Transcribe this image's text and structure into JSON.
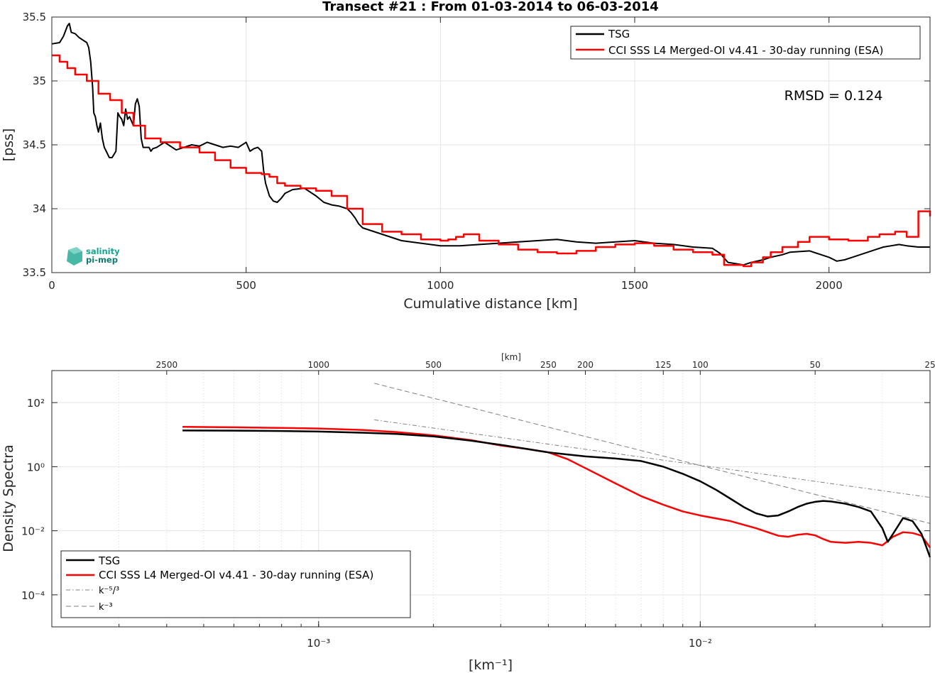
{
  "colors": {
    "tsg": "#000000",
    "cci": "#ff0000",
    "power_law": "#7f7f7f",
    "grid": "#e5e5e5",
    "logo": "#1aa390"
  },
  "logo": {
    "line1": "salinity",
    "line2": "pi-mep"
  },
  "chart_data": [
    {
      "type": "line",
      "title": "Transect #21 : From 01-03-2014 to 06-03-2014",
      "xlabel": "Cumulative distance [km]",
      "ylabel": "[pss]",
      "xlim": [
        0,
        2260
      ],
      "ylim": [
        33.5,
        35.5
      ],
      "xticks": [
        0,
        500,
        1000,
        1500,
        2000
      ],
      "yticks": [
        33.5,
        34,
        34.5,
        35,
        35.5
      ],
      "xtick_labels": [
        "0",
        "500",
        "1000",
        "1500",
        "2000"
      ],
      "ytick_labels": [
        "33.5",
        "34",
        "34.5",
        "35",
        "35.5"
      ],
      "grid": true,
      "legend_position": "top-right",
      "annotation": "RMSD = 0.124",
      "series": [
        {
          "name": "TSG",
          "style": "line",
          "x": [
            0,
            20,
            30,
            40,
            45,
            50,
            60,
            70,
            80,
            90,
            95,
            100,
            105,
            108,
            112,
            116,
            120,
            125,
            130,
            135,
            140,
            148,
            155,
            165,
            170,
            175,
            180,
            185,
            190,
            195,
            200,
            210,
            215,
            220,
            225,
            230,
            235,
            240,
            245,
            250,
            255,
            260,
            270,
            290,
            300,
            320,
            340,
            360,
            380,
            400,
            420,
            440,
            460,
            480,
            500,
            510,
            520,
            530,
            540,
            545,
            550,
            555,
            560,
            570,
            580,
            590,
            600,
            620,
            650,
            680,
            700,
            720,
            740,
            760,
            770,
            780,
            790,
            800,
            850,
            900,
            950,
            1000,
            1050,
            1100,
            1150,
            1200,
            1250,
            1300,
            1350,
            1400,
            1450,
            1500,
            1550,
            1600,
            1650,
            1700,
            1720,
            1740,
            1760,
            1780,
            1800,
            1830,
            1850,
            1880,
            1900,
            1950,
            2000,
            2020,
            2040,
            2060,
            2080,
            2100,
            2120,
            2140,
            2160,
            2180,
            2200,
            2230,
            2260
          ],
          "y": [
            35.29,
            35.3,
            35.35,
            35.43,
            35.45,
            35.38,
            35.37,
            35.34,
            35.32,
            35.3,
            35.26,
            35.15,
            34.95,
            34.75,
            34.72,
            34.65,
            34.6,
            34.67,
            34.55,
            34.48,
            34.45,
            34.4,
            34.4,
            34.45,
            34.75,
            34.72,
            34.7,
            34.65,
            34.78,
            34.7,
            34.72,
            34.65,
            34.82,
            34.86,
            34.8,
            34.55,
            34.48,
            34.48,
            34.48,
            34.48,
            34.45,
            34.47,
            34.48,
            34.52,
            34.5,
            34.46,
            34.48,
            34.5,
            34.49,
            34.52,
            34.5,
            34.48,
            34.49,
            34.48,
            34.52,
            34.45,
            34.47,
            34.48,
            34.45,
            34.3,
            34.2,
            34.15,
            34.1,
            34.06,
            34.05,
            34.08,
            34.12,
            34.15,
            34.16,
            34.1,
            34.05,
            34.03,
            34.02,
            34.0,
            33.97,
            33.93,
            33.88,
            33.85,
            33.8,
            33.75,
            33.73,
            33.71,
            33.71,
            33.72,
            33.73,
            33.74,
            33.75,
            33.76,
            33.74,
            33.73,
            33.74,
            33.75,
            33.73,
            33.72,
            33.7,
            33.69,
            33.65,
            33.58,
            33.57,
            33.56,
            33.58,
            33.6,
            33.62,
            33.64,
            33.66,
            33.67,
            33.62,
            33.59,
            33.6,
            33.62,
            33.64,
            33.66,
            33.68,
            33.7,
            33.71,
            33.72,
            33.71,
            33.7,
            33.7
          ]
        },
        {
          "name": "CCI SSS L4 Merged-OI v4.41 - 30-day running (ESA)",
          "style": "step",
          "x": [
            0,
            20,
            40,
            60,
            90,
            120,
            150,
            180,
            210,
            240,
            280,
            330,
            380,
            420,
            460,
            500,
            540,
            560,
            580,
            600,
            640,
            680,
            720,
            760,
            800,
            850,
            900,
            950,
            1000,
            1020,
            1040,
            1060,
            1100,
            1150,
            1200,
            1250,
            1300,
            1350,
            1400,
            1450,
            1500,
            1550,
            1600,
            1650,
            1700,
            1730,
            1780,
            1800,
            1830,
            1850,
            1880,
            1920,
            1950,
            2000,
            2050,
            2100,
            2130,
            2170,
            2200,
            2230,
            2260
          ],
          "y": [
            35.2,
            35.15,
            35.1,
            35.05,
            35.0,
            34.9,
            34.85,
            34.75,
            34.65,
            34.55,
            34.52,
            34.48,
            34.44,
            34.38,
            34.32,
            34.28,
            34.27,
            34.25,
            34.2,
            34.18,
            34.16,
            34.14,
            34.1,
            34.0,
            33.88,
            33.82,
            33.8,
            33.76,
            33.75,
            33.76,
            33.78,
            33.8,
            33.75,
            33.72,
            33.68,
            33.66,
            33.65,
            33.67,
            33.7,
            33.72,
            33.73,
            33.71,
            33.68,
            33.66,
            33.64,
            33.56,
            33.55,
            33.58,
            33.62,
            33.66,
            33.7,
            33.74,
            33.78,
            33.76,
            33.75,
            33.78,
            33.8,
            33.82,
            33.78,
            33.98,
            33.94
          ]
        }
      ]
    },
    {
      "type": "line",
      "xlabel": "[km⁻¹]",
      "ylabel": "Density Spectra",
      "x_scale": "log",
      "y_scale": "log",
      "xlim": [
        0.0002,
        0.04
      ],
      "ylim": [
        1e-05,
        1000
      ],
      "xtick_labels": [
        "10⁻³",
        "10⁻²"
      ],
      "xticks": [
        0.001,
        0.01
      ],
      "yticks": [
        0.0001,
        0.01,
        1,
        100
      ],
      "ytick_labels": [
        "10⁻⁴",
        "10⁻²",
        "10⁰",
        "10²"
      ],
      "top_axis_label": "[km]",
      "top_ticks": [
        2500,
        1000,
        500,
        250,
        200,
        125,
        100,
        50,
        25
      ],
      "top_tick_labels": [
        "2500",
        "1000",
        "500",
        "250",
        "200",
        "125",
        "100",
        "50",
        "25"
      ],
      "grid": true,
      "legend_position": "bottom-left",
      "series": [
        {
          "name": "TSG",
          "x": [
            0.00044,
            0.0006,
            0.0008,
            0.001,
            0.0013,
            0.0016,
            0.002,
            0.0025,
            0.003,
            0.0035,
            0.004,
            0.0045,
            0.005,
            0.006,
            0.007,
            0.008,
            0.009,
            0.01,
            0.011,
            0.012,
            0.013,
            0.014,
            0.015,
            0.016,
            0.017,
            0.018,
            0.019,
            0.02,
            0.021,
            0.022,
            0.024,
            0.026,
            0.028,
            0.03,
            0.031,
            0.032,
            0.034,
            0.036,
            0.038,
            0.04
          ],
          "y": [
            13.5,
            13.3,
            13.0,
            12.5,
            11.5,
            10.5,
            8.8,
            6.5,
            4.8,
            3.6,
            2.8,
            2.4,
            2.1,
            1.8,
            1.5,
            1.0,
            0.6,
            0.35,
            0.19,
            0.1,
            0.055,
            0.035,
            0.028,
            0.03,
            0.04,
            0.055,
            0.07,
            0.08,
            0.085,
            0.082,
            0.07,
            0.055,
            0.04,
            0.012,
            0.0045,
            0.008,
            0.025,
            0.02,
            0.008,
            0.0015
          ]
        },
        {
          "name": "CCI SSS L4 Merged-OI v4.41 - 30-day running (ESA)",
          "x": [
            0.00044,
            0.0006,
            0.0008,
            0.001,
            0.0013,
            0.0016,
            0.002,
            0.0025,
            0.003,
            0.0035,
            0.004,
            0.0045,
            0.005,
            0.006,
            0.007,
            0.008,
            0.009,
            0.01,
            0.012,
            0.014,
            0.016,
            0.017,
            0.018,
            0.019,
            0.02,
            0.021,
            0.022,
            0.024,
            0.026,
            0.028,
            0.03,
            0.032,
            0.034,
            0.036,
            0.038,
            0.04
          ],
          "y": [
            17.5,
            17.0,
            16.2,
            15.5,
            14.0,
            12.0,
            9.5,
            6.8,
            4.6,
            3.6,
            2.8,
            1.7,
            0.9,
            0.3,
            0.12,
            0.065,
            0.04,
            0.03,
            0.02,
            0.012,
            0.007,
            0.0065,
            0.0075,
            0.008,
            0.0072,
            0.0055,
            0.0045,
            0.0042,
            0.0045,
            0.0042,
            0.0035,
            0.0065,
            0.009,
            0.0085,
            0.007,
            0.003
          ]
        },
        {
          "name": "k⁻⁵/³",
          "style": "dash-dot",
          "x": [
            0.0014,
            0.04
          ],
          "y": [
            29,
            0.11
          ]
        },
        {
          "name": "k⁻³",
          "style": "dashed",
          "x": [
            0.0014,
            0.04
          ],
          "y": [
            400,
            0.017
          ]
        }
      ]
    }
  ]
}
